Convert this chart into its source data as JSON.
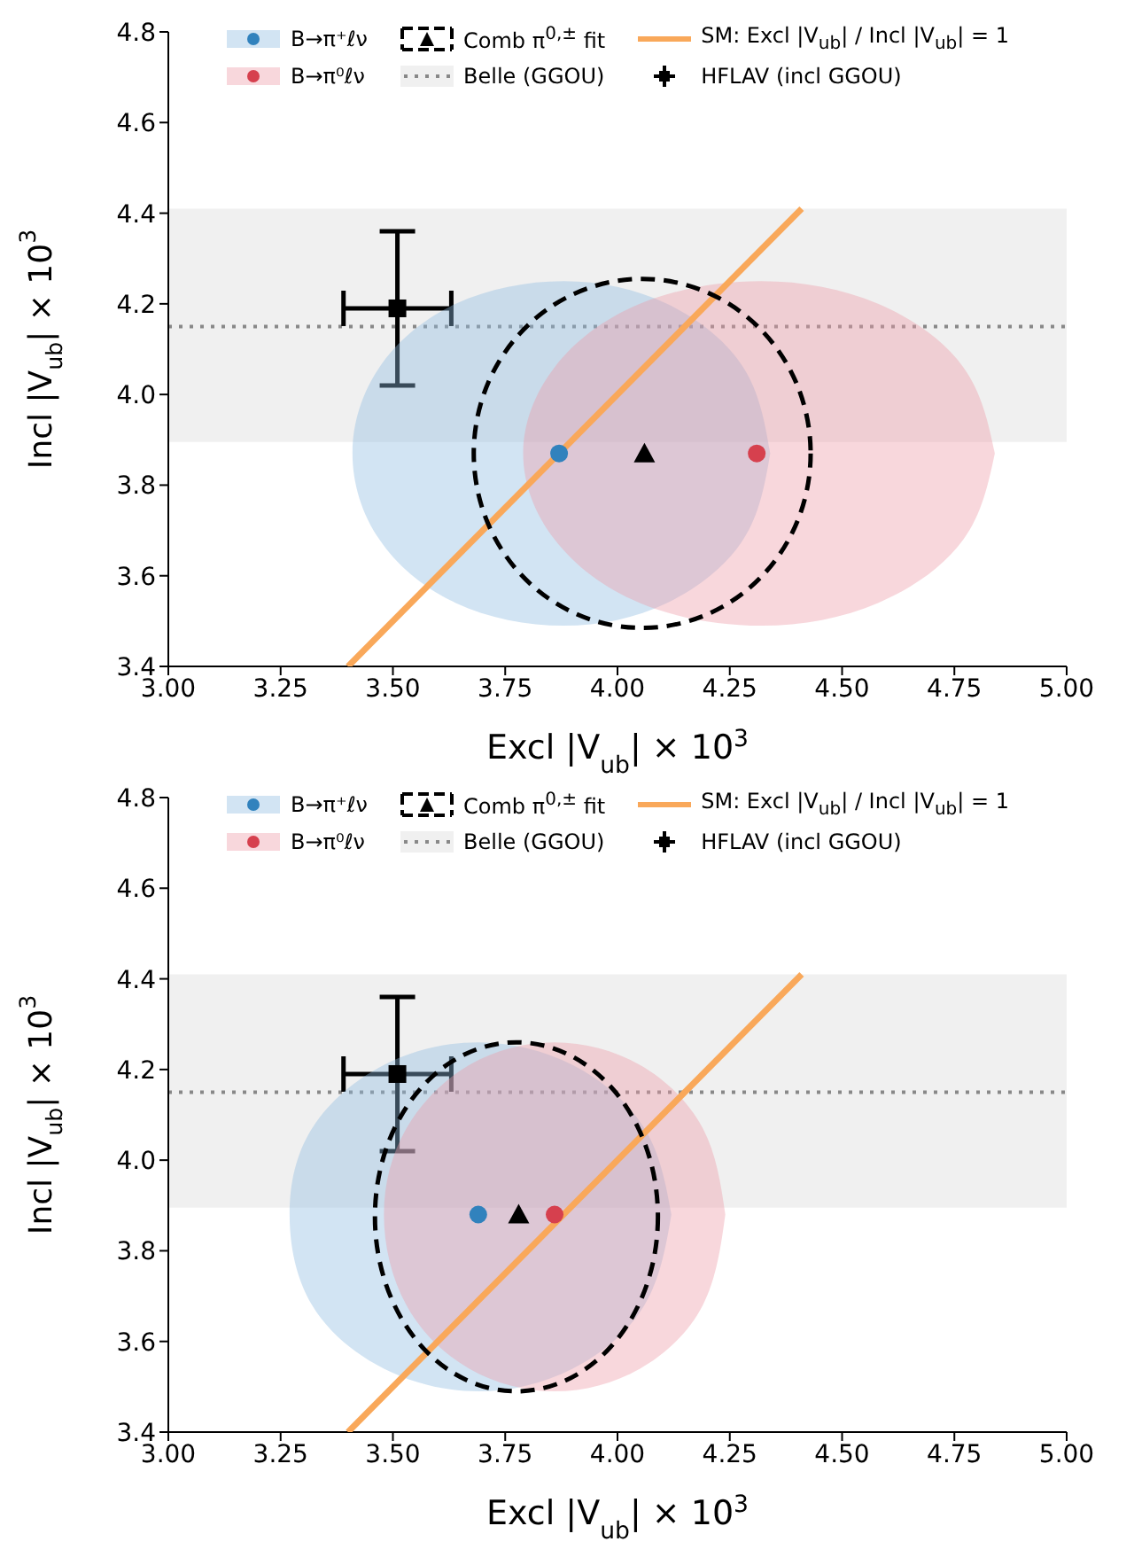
{
  "chart_data": [
    {
      "type": "scatter",
      "xlabel": "Excl |V$_{ub}$| × 10$^{3}$",
      "ylabel": "Incl |V$_{ub}$| × 10$^{3}$",
      "xlim": [
        3,
        5
      ],
      "xticks": [
        {
          "value": 3,
          "label": "3.00"
        },
        {
          "value": 3.25,
          "label": "3.25"
        },
        {
          "value": 3.5,
          "label": "3.50"
        },
        {
          "value": 3.75,
          "label": "3.75"
        },
        {
          "value": 4,
          "label": "4.00"
        },
        {
          "value": 4.25,
          "label": "4.25"
        },
        {
          "value": 4.5,
          "label": "4.50"
        },
        {
          "value": 4.75,
          "label": "4.75"
        },
        {
          "value": 5,
          "label": "5.00"
        }
      ],
      "ylim": [
        3.4,
        4.8
      ],
      "yticks": [
        3.4,
        3.6,
        3.8,
        {
          "value": 4,
          "label": "4.0"
        },
        4.2,
        4.4,
        4.6,
        4.8
      ],
      "legend": "top",
      "grid": false,
      "bands": [
        {
          "axis": "y",
          "from": 3.895,
          "to": 4.41,
          "color": "#f0f0f0",
          "label": null
        }
      ],
      "ref_lines": [
        {
          "axis": "y",
          "value": 4.15,
          "label": "Belle (GGOU)",
          "color": "#888888",
          "line_style": "dotted"
        }
      ],
      "series": [
        {
          "type": "area",
          "name": "B→π⁺ℓν",
          "color": "#8fbbe0",
          "x": [
            4.34,
            4.28,
            4.11,
            3.88,
            3.64,
            3.47,
            3.41,
            3.47,
            3.64,
            3.88,
            4.11,
            4.28,
            4.34
          ],
          "values": [
            3.87,
            4.06,
            4.2,
            4.25,
            4.2,
            4.06,
            3.87,
            3.68,
            3.54,
            3.49,
            3.54,
            3.68,
            3.87
          ]
        },
        {
          "type": "area",
          "name": "B→π⁰ℓν",
          "color": "#ee9aa8",
          "x": [
            4.84,
            4.77,
            4.58,
            4.32,
            4.05,
            3.86,
            3.79,
            3.86,
            4.05,
            4.32,
            4.58,
            4.77,
            4.84
          ],
          "values": [
            3.87,
            4.06,
            4.2,
            4.25,
            4.2,
            4.06,
            3.87,
            3.68,
            3.54,
            3.49,
            3.54,
            3.68,
            3.87
          ]
        },
        {
          "type": "line",
          "name": "SM: Excl |V$_{ub}$| / Incl |V$_{ub}$| = 1",
          "color": "#f9a85a",
          "line_style": "solid",
          "x": [
            3.4,
            4.41
          ],
          "values": [
            3.4,
            4.41
          ]
        },
        {
          "type": "scatter",
          "color": "#3182bd",
          "marker": "circle",
          "x": [
            3.87
          ],
          "values": [
            3.87
          ]
        },
        {
          "type": "scatter",
          "color": "#d6404e",
          "marker": "circle",
          "x": [
            4.31
          ],
          "values": [
            3.87
          ]
        },
        {
          "type": "scatter",
          "name": "Comb π$^{0,±}$ fit",
          "color": "#000000",
          "marker": "triangle",
          "x": [
            4.06
          ],
          "values": [
            3.87
          ]
        },
        {
          "type": "scatter",
          "name": "HFLAV (incl  GGOU)",
          "color": "#000000",
          "marker": "square",
          "x": [
            3.51
          ],
          "values": [
            4.19
          ],
          "errors": [
            0.17
          ],
          "xerrors": [
            0.12
          ]
        }
      ]
    },
    {
      "type": "scatter",
      "xlabel": "Excl |V$_{ub}$| × 10$^{3}$",
      "ylabel": "Incl |V$_{ub}$| × 10$^{3}$",
      "xlim": [
        3,
        5
      ],
      "xticks": [
        {
          "value": 3,
          "label": "3.00"
        },
        {
          "value": 3.25,
          "label": "3.25"
        },
        {
          "value": 3.5,
          "label": "3.50"
        },
        {
          "value": 3.75,
          "label": "3.75"
        },
        {
          "value": 4,
          "label": "4.00"
        },
        {
          "value": 4.25,
          "label": "4.25"
        },
        {
          "value": 4.5,
          "label": "4.50"
        },
        {
          "value": 4.75,
          "label": "4.75"
        },
        {
          "value": 5,
          "label": "5.00"
        }
      ],
      "ylim": [
        3.4,
        4.8
      ],
      "yticks": [
        3.4,
        3.6,
        3.8,
        {
          "value": 4,
          "label": "4.0"
        },
        4.2,
        4.4,
        4.6,
        4.8
      ],
      "legend": "top",
      "grid": false,
      "bands": [
        {
          "axis": "y",
          "from": 3.895,
          "to": 4.41,
          "color": "#f0f0f0",
          "label": null
        }
      ],
      "ref_lines": [
        {
          "axis": "y",
          "value": 4.15,
          "label": "Belle (GGOU)",
          "color": "#888888",
          "line_style": "dotted"
        }
      ],
      "series": [
        {
          "type": "area",
          "name": "B→π⁺ℓν",
          "color": "#8fbbe0",
          "x": [
            4.12,
            4.06,
            3.9,
            3.69,
            3.48,
            3.32,
            3.27,
            3.32,
            3.48,
            3.69,
            3.9,
            4.06,
            4.12
          ],
          "values": [
            3.88,
            4.07,
            4.21,
            4.26,
            4.21,
            4.07,
            3.88,
            3.68,
            3.54,
            3.49,
            3.54,
            3.68,
            3.88
          ]
        },
        {
          "type": "area",
          "name": "B→π⁰ℓν",
          "color": "#ee9aa8",
          "x": [
            4.24,
            4.19,
            4.05,
            3.86,
            3.67,
            3.53,
            3.48,
            3.53,
            3.67,
            3.86,
            4.05,
            4.19,
            4.24
          ],
          "values": [
            3.88,
            4.07,
            4.21,
            4.26,
            4.21,
            4.07,
            3.88,
            3.68,
            3.54,
            3.49,
            3.54,
            3.68,
            3.88
          ]
        },
        {
          "type": "line",
          "name": "SM: Excl |V$_{ub}$| / Incl |V$_{ub}$| = 1",
          "color": "#f9a85a",
          "line_style": "solid",
          "x": [
            3.4,
            4.41
          ],
          "values": [
            3.4,
            4.41
          ]
        },
        {
          "type": "scatter",
          "color": "#3182bd",
          "marker": "circle",
          "x": [
            3.69
          ],
          "values": [
            3.88
          ]
        },
        {
          "type": "scatter",
          "color": "#d6404e",
          "marker": "circle",
          "x": [
            3.86
          ],
          "values": [
            3.88
          ]
        },
        {
          "type": "scatter",
          "name": "Comb π$^{0,±}$ fit",
          "color": "#000000",
          "marker": "triangle",
          "x": [
            3.78
          ],
          "values": [
            3.88
          ]
        },
        {
          "type": "scatter",
          "name": "HFLAV (incl  GGOU)",
          "color": "#000000",
          "marker": "square",
          "x": [
            3.51
          ],
          "values": [
            4.19
          ],
          "errors": [
            0.17
          ],
          "xerrors": [
            0.12
          ]
        }
      ]
    }
  ]
}
